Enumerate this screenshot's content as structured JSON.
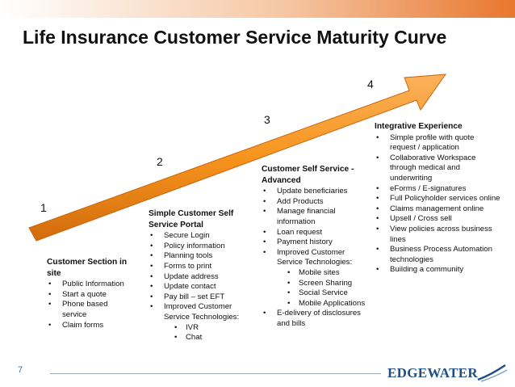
{
  "title": "Life Insurance Customer Service Maturity Curve",
  "colors": {
    "arrow_fill": "#f7941d",
    "arrow_dark": "#d26b0c",
    "top_band": "#e8772e",
    "logo": "#1f4f86",
    "footer_line": "#9aa7b6"
  },
  "stage_numbers": [
    "1",
    "2",
    "3",
    "4"
  ],
  "stages": [
    {
      "title": "Customer Section in site",
      "items": [
        "Public Information",
        "Start a quote",
        "Phone based service",
        "Claim forms"
      ]
    },
    {
      "title": "Simple Customer Self Service Portal",
      "items": [
        "Secure Login",
        "Policy information",
        "Planning tools",
        "Forms to print",
        "Update address",
        "Update contact",
        "Pay bill – set EFT",
        "Improved Customer Service Technologies:"
      ],
      "subitems": [
        "IVR",
        "Chat"
      ]
    },
    {
      "title": "Customer Self Service - Advanced",
      "items": [
        "Update beneficiaries",
        "Add Products",
        "Manage financial information",
        "Loan request",
        "Payment history",
        "Improved Customer Service Technologies:"
      ],
      "subitems": [
        "Mobile sites",
        "Screen Sharing",
        "Social Service",
        "Mobile Applications"
      ],
      "after_items": [
        "E-delivery of disclosures and bills"
      ]
    },
    {
      "title": "Integrative Experience",
      "items": [
        "Simple profile with quote request / application",
        "Collaborative Workspace through medical and underwriting",
        "eForms / E-signatures",
        "Full Policyholder services online",
        "Claims management online",
        "Upsell / Cross sell",
        "View policies across business lines",
        "Business Process Automation technologies",
        "Building a community"
      ]
    }
  ],
  "footer": {
    "page_number": "7",
    "logo_text": "EDGEWATER"
  }
}
